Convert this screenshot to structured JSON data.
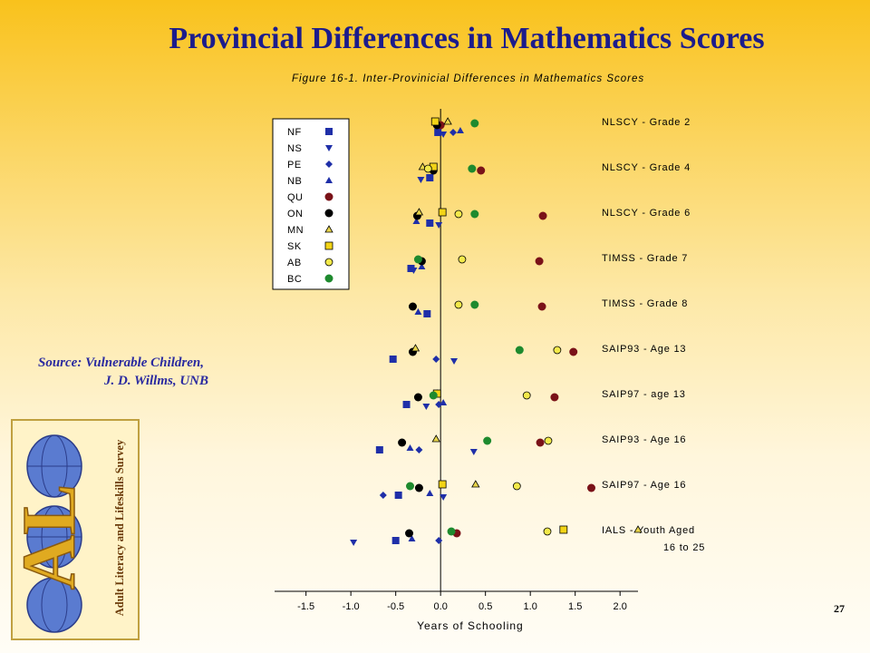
{
  "slide": {
    "title": "Provincial Differences in Mathematics Scores",
    "page_number": "27",
    "source_line1": "Source:  Vulnerable Children,",
    "source_line2": "J. D. Willms, UNB",
    "logo_mark": "AL",
    "logo_text": "Adult Literacy and Lifeskills Survey"
  },
  "chart_data": {
    "type": "scatter",
    "title": "Figure 16-1. Inter-Provinicial Differences in Mathematics Scores",
    "xlabel": "Years of Schooling",
    "xlim": [
      -1.85,
      2.2
    ],
    "xticks": [
      -1.5,
      -1.0,
      -0.5,
      0.0,
      0.5,
      1.0,
      1.5,
      2.0
    ],
    "xtick_labels": [
      "-1.5",
      "-1.0",
      "-0.5",
      "0.0",
      "0.5",
      "1.0",
      "1.5",
      "2.0"
    ],
    "categories": [
      "NLSCY - Grade 2",
      "NLSCY - Grade 4",
      "NLSCY - Grade 6",
      "TIMSS - Grade 7",
      "TIMSS - Grade 8",
      "SAIP93 - Age 13",
      "SAIP97 - age 13",
      "SAIP93 - Age 16",
      "SAIP97 - Age 16",
      "IALS - Youth Aged 16 to 25"
    ],
    "category_labels": [
      [
        "NLSCY - Grade 2"
      ],
      [
        "NLSCY - Grade 4"
      ],
      [
        "NLSCY - Grade 6"
      ],
      [
        "TIMSS - Grade 7"
      ],
      [
        "TIMSS - Grade 8"
      ],
      [
        "SAIP93 - Age 13"
      ],
      [
        "SAIP97 - age 13"
      ],
      [
        "SAIP93 - Age 16"
      ],
      [
        "SAIP97 - Age 16"
      ],
      [
        "IALS - Youth Aged",
        "16 to 25"
      ]
    ],
    "legend_position": "top-left",
    "series": [
      {
        "name": "NF",
        "marker": "square",
        "color": "#1f2fa8",
        "values": [
          -0.03,
          -0.12,
          -0.12,
          -0.33,
          -0.15,
          -0.53,
          -0.38,
          -0.68,
          -0.47,
          -0.5
        ]
      },
      {
        "name": "NS",
        "marker": "triangle-down",
        "color": "#1f2fa8",
        "values": [
          0.03,
          -0.22,
          -0.02,
          -0.3,
          null,
          0.15,
          -0.16,
          0.37,
          0.03,
          -0.97
        ]
      },
      {
        "name": "PE",
        "marker": "diamond",
        "color": "#1f2fa8",
        "values": [
          0.14,
          -0.12,
          null,
          null,
          null,
          -0.05,
          -0.02,
          -0.24,
          -0.64,
          -0.02
        ]
      },
      {
        "name": "NB",
        "marker": "triangle-up",
        "color": "#1f2fa8",
        "values": [
          0.22,
          null,
          -0.27,
          -0.21,
          -0.25,
          null,
          0.03,
          -0.34,
          -0.12,
          -0.32
        ]
      },
      {
        "name": "QU",
        "marker": "circle",
        "color": "#7a1218",
        "values": [
          0.0,
          0.45,
          1.14,
          1.1,
          1.13,
          1.48,
          1.27,
          1.11,
          1.68,
          0.18
        ]
      },
      {
        "name": "ON",
        "marker": "circle",
        "color": "#000000",
        "values": [
          -0.04,
          -0.08,
          -0.26,
          -0.21,
          -0.31,
          -0.31,
          -0.25,
          -0.43,
          -0.24,
          -0.35
        ]
      },
      {
        "name": "MN",
        "marker": "triangle-up-open",
        "color": "#e8d54a",
        "values": [
          0.08,
          -0.2,
          -0.24,
          null,
          null,
          -0.28,
          -0.04,
          -0.05,
          0.39,
          2.2
        ]
      },
      {
        "name": "SK",
        "marker": "square-open",
        "color": "#f3d416",
        "values": [
          -0.06,
          -0.08,
          0.02,
          null,
          null,
          null,
          -0.04,
          null,
          0.02,
          1.37
        ]
      },
      {
        "name": "AB",
        "marker": "circle-open",
        "color": "#f3e94a",
        "values": [
          null,
          -0.14,
          0.2,
          0.24,
          0.2,
          1.3,
          0.96,
          1.2,
          0.85,
          1.19
        ]
      },
      {
        "name": "BC",
        "marker": "circle",
        "color": "#1e8a2e",
        "values": [
          0.38,
          0.35,
          0.38,
          -0.25,
          0.38,
          0.88,
          -0.08,
          0.52,
          -0.34,
          0.12
        ]
      }
    ]
  }
}
